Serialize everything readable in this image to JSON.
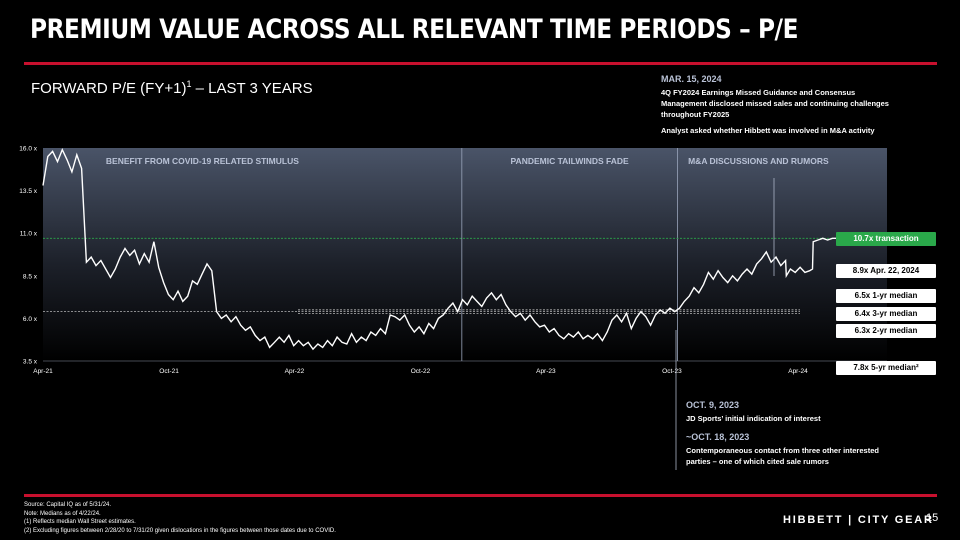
{
  "page": {
    "title": "PREMIUM VALUE ACROSS ALL RELEVANT TIME PERIODS – P/E",
    "subtitle": "FORWARD P/E (FY+1)",
    "subtitle_sup": "1",
    "subtitle_tail": " – LAST 3 YEARS",
    "page_number": "15",
    "logo": "HIBBETT | CITY GEAR",
    "accent_color": "#c8102e"
  },
  "notes": {
    "mar": {
      "head": "MAR. 15, 2024",
      "lines": [
        "4Q FY2024 Earnings Missed Guidance and Consensus",
        "Management disclosed missed sales and continuing challenges",
        "throughout FY2025",
        "",
        "Analyst asked whether Hibbett was involved in M&A activity"
      ]
    },
    "oct9": {
      "head": "OCT. 9, 2023",
      "lines": [
        "JD Sports’ initial indication of interest"
      ]
    },
    "oct18": {
      "head": "~OCT. 18, 2023",
      "lines": [
        "Contemporaneous contact from three other interested",
        "parties – one of which cited sale rumors"
      ]
    }
  },
  "tags": [
    {
      "text": "10.7x transaction",
      "style": "green"
    },
    {
      "text": "8.9x Apr. 22, 2024",
      "style": "white"
    },
    {
      "text": "6.5x 1-yr median",
      "style": "white"
    },
    {
      "text": "6.4x 3-yr median",
      "style": "white"
    },
    {
      "text": "6.3x 2-yr median",
      "style": "white"
    },
    {
      "text": "7.8x 5-yr median²",
      "style": "white"
    }
  ],
  "footnotes": [
    "Source: Capital IQ as of 5/31/24.",
    "Note: Medians as of 4/22/24.",
    "(1) Reflects median Wall Street estimates.",
    "(2) Excluding figures between 2/28/20 to 7/31/20 given dislocations in the figures between those dates due to COVID."
  ],
  "chart_data": {
    "type": "line",
    "x_ticks": [
      "Apr-21",
      "Oct-21",
      "Apr-22",
      "Oct-22",
      "Apr-23",
      "Oct-23",
      "Apr-24"
    ],
    "y_ticks": [
      "16.0 x",
      "13.5 x",
      "11.0 x",
      "8.5 x",
      "6.0 x",
      "3.5 x"
    ],
    "ylim": [
      3.5,
      16.0
    ],
    "xlim": [
      "2021-04-01",
      "2024-05-31"
    ],
    "regions": [
      {
        "label": "BENEFIT FROM COVID-19 RELATED STIMULUS",
        "from": "2021-04-01",
        "to": "2022-11-30"
      },
      {
        "label": "PANDEMIC TAILWINDS FADE",
        "from": "2022-11-30",
        "to": "2023-10-09"
      },
      {
        "label": "M&A DISCUSSIONS AND RUMORS",
        "from": "2023-10-09",
        "to": "2024-05-31"
      }
    ],
    "reference_lines": [
      {
        "name": "10.7x transaction",
        "value": 10.7,
        "color": "#2aa84a"
      },
      {
        "name": "6.5x 1-yr median",
        "value": 6.5
      },
      {
        "name": "6.4x 3-yr median",
        "value": 6.4
      },
      {
        "name": "6.3x 2-yr median",
        "value": 6.3
      }
    ],
    "series": [
      {
        "values": [
          {
            "x": "2021-04-01",
            "y": 13.8
          },
          {
            "x": "2021-04-08",
            "y": 15.5
          },
          {
            "x": "2021-04-15",
            "y": 15.8
          },
          {
            "x": "2021-04-22",
            "y": 15.2
          },
          {
            "x": "2021-04-29",
            "y": 15.9
          },
          {
            "x": "2021-05-06",
            "y": 15.3
          },
          {
            "x": "2021-05-13",
            "y": 14.6
          },
          {
            "x": "2021-05-20",
            "y": 15.6
          },
          {
            "x": "2021-05-27",
            "y": 14.8
          },
          {
            "x": "2021-06-03",
            "y": 9.3
          },
          {
            "x": "2021-06-10",
            "y": 9.6
          },
          {
            "x": "2021-06-17",
            "y": 9.1
          },
          {
            "x": "2021-06-24",
            "y": 9.4
          },
          {
            "x": "2021-07-01",
            "y": 8.9
          },
          {
            "x": "2021-07-08",
            "y": 8.4
          },
          {
            "x": "2021-07-15",
            "y": 8.9
          },
          {
            "x": "2021-07-22",
            "y": 9.6
          },
          {
            "x": "2021-07-29",
            "y": 10.1
          },
          {
            "x": "2021-08-05",
            "y": 9.7
          },
          {
            "x": "2021-08-12",
            "y": 10.0
          },
          {
            "x": "2021-08-19",
            "y": 9.2
          },
          {
            "x": "2021-08-26",
            "y": 9.8
          },
          {
            "x": "2021-09-02",
            "y": 9.3
          },
          {
            "x": "2021-09-09",
            "y": 10.5
          },
          {
            "x": "2021-09-16",
            "y": 9.0
          },
          {
            "x": "2021-09-23",
            "y": 8.1
          },
          {
            "x": "2021-09-30",
            "y": 7.4
          },
          {
            "x": "2021-10-07",
            "y": 7.1
          },
          {
            "x": "2021-10-14",
            "y": 7.6
          },
          {
            "x": "2021-10-21",
            "y": 7.0
          },
          {
            "x": "2021-10-28",
            "y": 7.3
          },
          {
            "x": "2021-11-04",
            "y": 8.2
          },
          {
            "x": "2021-11-11",
            "y": 8.0
          },
          {
            "x": "2021-11-18",
            "y": 8.6
          },
          {
            "x": "2021-11-25",
            "y": 9.2
          },
          {
            "x": "2021-12-02",
            "y": 8.8
          },
          {
            "x": "2021-12-09",
            "y": 6.4
          },
          {
            "x": "2021-12-16",
            "y": 6.0
          },
          {
            "x": "2021-12-23",
            "y": 6.2
          },
          {
            "x": "2021-12-30",
            "y": 5.8
          },
          {
            "x": "2022-01-06",
            "y": 6.1
          },
          {
            "x": "2022-01-13",
            "y": 5.6
          },
          {
            "x": "2022-01-20",
            "y": 5.3
          },
          {
            "x": "2022-01-27",
            "y": 5.5
          },
          {
            "x": "2022-02-03",
            "y": 5.0
          },
          {
            "x": "2022-02-10",
            "y": 4.7
          },
          {
            "x": "2022-02-17",
            "y": 4.9
          },
          {
            "x": "2022-02-24",
            "y": 4.3
          },
          {
            "x": "2022-03-03",
            "y": 4.6
          },
          {
            "x": "2022-03-10",
            "y": 4.9
          },
          {
            "x": "2022-03-17",
            "y": 4.6
          },
          {
            "x": "2022-03-24",
            "y": 5.0
          },
          {
            "x": "2022-03-31",
            "y": 4.4
          },
          {
            "x": "2022-04-07",
            "y": 4.7
          },
          {
            "x": "2022-04-14",
            "y": 4.4
          },
          {
            "x": "2022-04-21",
            "y": 4.6
          },
          {
            "x": "2022-04-28",
            "y": 4.2
          },
          {
            "x": "2022-05-05",
            "y": 4.5
          },
          {
            "x": "2022-05-12",
            "y": 4.3
          },
          {
            "x": "2022-05-19",
            "y": 4.7
          },
          {
            "x": "2022-05-26",
            "y": 4.4
          },
          {
            "x": "2022-06-02",
            "y": 4.9
          },
          {
            "x": "2022-06-09",
            "y": 4.6
          },
          {
            "x": "2022-06-16",
            "y": 4.5
          },
          {
            "x": "2022-06-23",
            "y": 5.1
          },
          {
            "x": "2022-06-30",
            "y": 4.6
          },
          {
            "x": "2022-07-07",
            "y": 4.9
          },
          {
            "x": "2022-07-14",
            "y": 4.7
          },
          {
            "x": "2022-07-21",
            "y": 5.2
          },
          {
            "x": "2022-07-28",
            "y": 5.0
          },
          {
            "x": "2022-08-04",
            "y": 5.4
          },
          {
            "x": "2022-08-11",
            "y": 5.1
          },
          {
            "x": "2022-08-18",
            "y": 6.2
          },
          {
            "x": "2022-08-25",
            "y": 6.1
          },
          {
            "x": "2022-09-01",
            "y": 5.9
          },
          {
            "x": "2022-09-08",
            "y": 6.2
          },
          {
            "x": "2022-09-15",
            "y": 5.6
          },
          {
            "x": "2022-09-22",
            "y": 5.2
          },
          {
            "x": "2022-09-29",
            "y": 5.5
          },
          {
            "x": "2022-10-06",
            "y": 5.1
          },
          {
            "x": "2022-10-13",
            "y": 5.7
          },
          {
            "x": "2022-10-20",
            "y": 5.4
          },
          {
            "x": "2022-10-27",
            "y": 6.0
          },
          {
            "x": "2022-11-03",
            "y": 6.2
          },
          {
            "x": "2022-11-10",
            "y": 6.6
          },
          {
            "x": "2022-11-17",
            "y": 6.9
          },
          {
            "x": "2022-11-24",
            "y": 6.4
          },
          {
            "x": "2022-12-01",
            "y": 7.1
          },
          {
            "x": "2022-12-08",
            "y": 6.8
          },
          {
            "x": "2022-12-15",
            "y": 7.3
          },
          {
            "x": "2022-12-22",
            "y": 7.0
          },
          {
            "x": "2022-12-29",
            "y": 6.7
          },
          {
            "x": "2023-01-05",
            "y": 7.2
          },
          {
            "x": "2023-01-12",
            "y": 7.5
          },
          {
            "x": "2023-01-19",
            "y": 7.1
          },
          {
            "x": "2023-01-26",
            "y": 7.4
          },
          {
            "x": "2023-02-02",
            "y": 6.8
          },
          {
            "x": "2023-02-09",
            "y": 6.4
          },
          {
            "x": "2023-02-16",
            "y": 6.1
          },
          {
            "x": "2023-02-23",
            "y": 6.3
          },
          {
            "x": "2023-03-02",
            "y": 5.9
          },
          {
            "x": "2023-03-09",
            "y": 6.2
          },
          {
            "x": "2023-03-16",
            "y": 5.8
          },
          {
            "x": "2023-03-23",
            "y": 5.5
          },
          {
            "x": "2023-03-30",
            "y": 5.6
          },
          {
            "x": "2023-04-06",
            "y": 5.2
          },
          {
            "x": "2023-04-13",
            "y": 5.4
          },
          {
            "x": "2023-04-20",
            "y": 5.0
          },
          {
            "x": "2023-04-27",
            "y": 4.8
          },
          {
            "x": "2023-05-04",
            "y": 5.1
          },
          {
            "x": "2023-05-11",
            "y": 4.9
          },
          {
            "x": "2023-05-18",
            "y": 5.2
          },
          {
            "x": "2023-05-25",
            "y": 4.8
          },
          {
            "x": "2023-06-01",
            "y": 5.0
          },
          {
            "x": "2023-06-08",
            "y": 4.8
          },
          {
            "x": "2023-06-15",
            "y": 5.1
          },
          {
            "x": "2023-06-22",
            "y": 4.7
          },
          {
            "x": "2023-06-29",
            "y": 5.2
          },
          {
            "x": "2023-07-06",
            "y": 5.9
          },
          {
            "x": "2023-07-13",
            "y": 6.2
          },
          {
            "x": "2023-07-20",
            "y": 5.8
          },
          {
            "x": "2023-07-27",
            "y": 6.3
          },
          {
            "x": "2023-08-03",
            "y": 5.4
          },
          {
            "x": "2023-08-10",
            "y": 6.0
          },
          {
            "x": "2023-08-17",
            "y": 6.4
          },
          {
            "x": "2023-08-24",
            "y": 6.1
          },
          {
            "x": "2023-08-31",
            "y": 5.6
          },
          {
            "x": "2023-09-07",
            "y": 6.2
          },
          {
            "x": "2023-09-14",
            "y": 6.5
          },
          {
            "x": "2023-09-21",
            "y": 6.3
          },
          {
            "x": "2023-09-28",
            "y": 6.6
          },
          {
            "x": "2023-10-05",
            "y": 6.4
          },
          {
            "x": "2023-10-12",
            "y": 6.6
          },
          {
            "x": "2023-10-19",
            "y": 7.0
          },
          {
            "x": "2023-10-26",
            "y": 7.3
          },
          {
            "x": "2023-11-02",
            "y": 7.8
          },
          {
            "x": "2023-11-09",
            "y": 7.5
          },
          {
            "x": "2023-11-16",
            "y": 8.0
          },
          {
            "x": "2023-11-23",
            "y": 8.7
          },
          {
            "x": "2023-11-30",
            "y": 8.3
          },
          {
            "x": "2023-12-07",
            "y": 8.8
          },
          {
            "x": "2023-12-14",
            "y": 8.4
          },
          {
            "x": "2023-12-21",
            "y": 8.1
          },
          {
            "x": "2023-12-28",
            "y": 8.5
          },
          {
            "x": "2024-01-04",
            "y": 8.2
          },
          {
            "x": "2024-01-11",
            "y": 8.6
          },
          {
            "x": "2024-01-18",
            "y": 8.9
          },
          {
            "x": "2024-01-25",
            "y": 8.6
          },
          {
            "x": "2024-02-01",
            "y": 9.2
          },
          {
            "x": "2024-02-08",
            "y": 9.5
          },
          {
            "x": "2024-02-15",
            "y": 9.9
          },
          {
            "x": "2024-02-22",
            "y": 9.3
          },
          {
            "x": "2024-02-29",
            "y": 9.6
          },
          {
            "x": "2024-03-07",
            "y": 9.1
          },
          {
            "x": "2024-03-14",
            "y": 9.4
          },
          {
            "x": "2024-03-15",
            "y": 8.5
          },
          {
            "x": "2024-03-21",
            "y": 8.9
          },
          {
            "x": "2024-03-28",
            "y": 8.7
          },
          {
            "x": "2024-04-04",
            "y": 9.0
          },
          {
            "x": "2024-04-11",
            "y": 8.7
          },
          {
            "x": "2024-04-18",
            "y": 8.8
          },
          {
            "x": "2024-04-22",
            "y": 8.9
          },
          {
            "x": "2024-04-23",
            "y": 10.5
          },
          {
            "x": "2024-04-30",
            "y": 10.6
          },
          {
            "x": "2024-05-07",
            "y": 10.7
          },
          {
            "x": "2024-05-14",
            "y": 10.6
          },
          {
            "x": "2024-05-21",
            "y": 10.7
          },
          {
            "x": "2024-05-31",
            "y": 10.7
          }
        ]
      }
    ]
  }
}
